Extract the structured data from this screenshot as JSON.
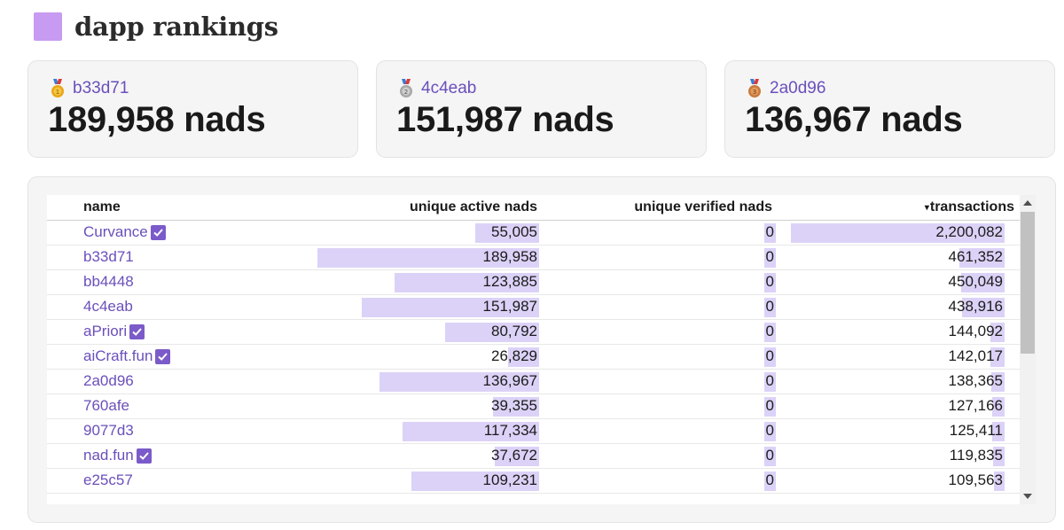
{
  "header": {
    "title": "dapp rankings"
  },
  "cards": [
    {
      "medal": "gold-medal-icon",
      "medal_color": "#e8a817",
      "name": "b33d71",
      "value": "189,958 nads"
    },
    {
      "medal": "silver-medal-icon",
      "medal_color": "#a8a8a8",
      "name": "4c4eab",
      "value": "151,987 nads"
    },
    {
      "medal": "bronze-medal-icon",
      "medal_color": "#c97a3d",
      "name": "2a0d96",
      "value": "136,967 nads"
    }
  ],
  "table": {
    "columns": {
      "name": "name",
      "active": "unique active nads",
      "verified": "unique verified nads",
      "tx": "transactions"
    },
    "sort_indicator": "▾",
    "rows": [
      {
        "name": "Curvance",
        "verified_badge": true,
        "active": "55,005",
        "active_num": 55005,
        "verified": "0",
        "tx": "2,200,082",
        "tx_num": 2200082
      },
      {
        "name": "b33d71",
        "verified_badge": false,
        "active": "189,958",
        "active_num": 189958,
        "verified": "0",
        "tx": "461,352",
        "tx_num": 461352
      },
      {
        "name": "bb4448",
        "verified_badge": false,
        "active": "123,885",
        "active_num": 123885,
        "verified": "0",
        "tx": "450,049",
        "tx_num": 450049
      },
      {
        "name": "4c4eab",
        "verified_badge": false,
        "active": "151,987",
        "active_num": 151987,
        "verified": "0",
        "tx": "438,916",
        "tx_num": 438916
      },
      {
        "name": "aPriori",
        "verified_badge": true,
        "active": "80,792",
        "active_num": 80792,
        "verified": "0",
        "tx": "144,092",
        "tx_num": 144092
      },
      {
        "name": "aiCraft.fun",
        "verified_badge": true,
        "active": "26,829",
        "active_num": 26829,
        "verified": "0",
        "tx": "142,017",
        "tx_num": 142017
      },
      {
        "name": "2a0d96",
        "verified_badge": false,
        "active": "136,967",
        "active_num": 136967,
        "verified": "0",
        "tx": "138,365",
        "tx_num": 138365
      },
      {
        "name": "760afe",
        "verified_badge": false,
        "active": "39,355",
        "active_num": 39355,
        "verified": "0",
        "tx": "127,166",
        "tx_num": 127166
      },
      {
        "name": "9077d3",
        "verified_badge": false,
        "active": "117,334",
        "active_num": 117334,
        "verified": "0",
        "tx": "125,411",
        "tx_num": 125411
      },
      {
        "name": "nad.fun",
        "verified_badge": true,
        "active": "37,672",
        "active_num": 37672,
        "verified": "0",
        "tx": "119,835",
        "tx_num": 119835
      },
      {
        "name": "e25c57",
        "verified_badge": false,
        "active": "109,231",
        "active_num": 109231,
        "verified": "0",
        "tx": "109,563",
        "tx_num": 109563
      }
    ]
  },
  "colors": {
    "accent": "#6b4fbb",
    "bar": "#dcd2f7",
    "badge": "#7b5bc9",
    "header_square": "#c79bf2"
  }
}
